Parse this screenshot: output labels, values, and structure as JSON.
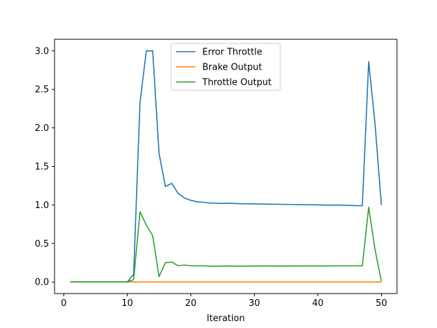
{
  "chart_data": {
    "type": "line",
    "xlabel": "Iteration",
    "ylabel": "",
    "title": "",
    "xlim": [
      -1.45,
      52.45
    ],
    "ylim": [
      -0.15,
      3.15
    ],
    "xticks": [
      0,
      10,
      20,
      30,
      40,
      50
    ],
    "xtick_labels": [
      "0",
      "10",
      "20",
      "30",
      "40",
      "50"
    ],
    "yticks": [
      0.0,
      0.5,
      1.0,
      1.5,
      2.0,
      2.5,
      3.0
    ],
    "ytick_labels": [
      "0.0",
      "0.5",
      "1.0",
      "1.5",
      "2.0",
      "2.5",
      "3.0"
    ],
    "legend_placement": "upper-center",
    "grid": false,
    "x": [
      1,
      2,
      3,
      4,
      5,
      6,
      7,
      8,
      9,
      10,
      11,
      12,
      13,
      14,
      15,
      16,
      17,
      18,
      19,
      20,
      21,
      22,
      23,
      24,
      25,
      26,
      27,
      28,
      29,
      30,
      31,
      32,
      33,
      34,
      35,
      36,
      37,
      38,
      39,
      40,
      41,
      42,
      43,
      44,
      45,
      46,
      47,
      48,
      49,
      50
    ],
    "series": [
      {
        "name": "Error Throttle",
        "color": "#1f77b4",
        "values": [
          0,
          0,
          0,
          0,
          0,
          0,
          0,
          0,
          0,
          0,
          0.1,
          2.33,
          3.0,
          3.0,
          1.67,
          1.24,
          1.28,
          1.15,
          1.09,
          1.06,
          1.04,
          1.035,
          1.025,
          1.022,
          1.02,
          1.022,
          1.018,
          1.015,
          1.014,
          1.013,
          1.012,
          1.011,
          1.009,
          1.008,
          1.007,
          1.006,
          1.004,
          1.003,
          1.002,
          1.001,
          0.999,
          0.997,
          0.999,
          0.996,
          0.993,
          0.991,
          0.99,
          2.86,
          2.05,
          1.0
        ]
      },
      {
        "name": "Brake Output",
        "color": "#ff7f0e",
        "values": [
          0,
          0,
          0,
          0,
          0,
          0,
          0,
          0,
          0,
          0,
          0,
          0,
          0,
          0,
          0,
          0,
          0,
          0,
          0,
          0,
          0,
          0,
          0,
          0,
          0,
          0,
          0,
          0,
          0,
          0,
          0,
          0,
          0,
          0,
          0,
          0,
          0,
          0,
          0,
          0,
          0,
          0,
          0,
          0,
          0,
          0,
          0,
          0,
          0,
          0
        ]
      },
      {
        "name": "Throttle Output",
        "color": "#2ca02c",
        "values": [
          0,
          0,
          0,
          0,
          0,
          0,
          0,
          0,
          0,
          0,
          0.03,
          0.91,
          0.74,
          0.6,
          0.07,
          0.25,
          0.26,
          0.21,
          0.22,
          0.21,
          0.21,
          0.21,
          0.205,
          0.205,
          0.207,
          0.207,
          0.206,
          0.206,
          0.206,
          0.207,
          0.208,
          0.207,
          0.207,
          0.207,
          0.207,
          0.208,
          0.207,
          0.208,
          0.208,
          0.208,
          0.208,
          0.208,
          0.21,
          0.21,
          0.21,
          0.21,
          0.21,
          0.97,
          0.42,
          0.01
        ]
      }
    ]
  }
}
